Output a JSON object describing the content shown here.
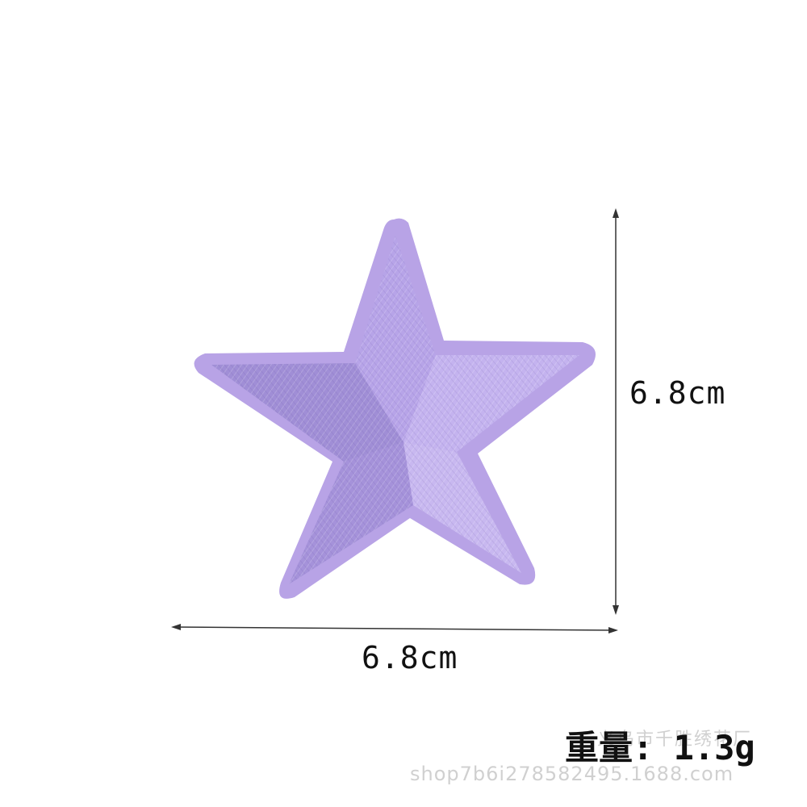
{
  "product": {
    "image_name": "embroidered-star-patch",
    "colors": {
      "felt_border": "#b8a3e6",
      "thread_light": "#c3b2ee",
      "thread_mid": "#a995dc",
      "thread_dark": "#9784d0",
      "background": "#ffffff",
      "dimension_line": "#333333"
    }
  },
  "dimensions": {
    "height_label": "6.8cm",
    "width_label": "6.8cm"
  },
  "weight": {
    "label": "重量: 1.3g"
  },
  "watermark": {
    "company": "义乌市千胜绣花厂",
    "shop": "shop7b6i278582495.1688.com"
  }
}
